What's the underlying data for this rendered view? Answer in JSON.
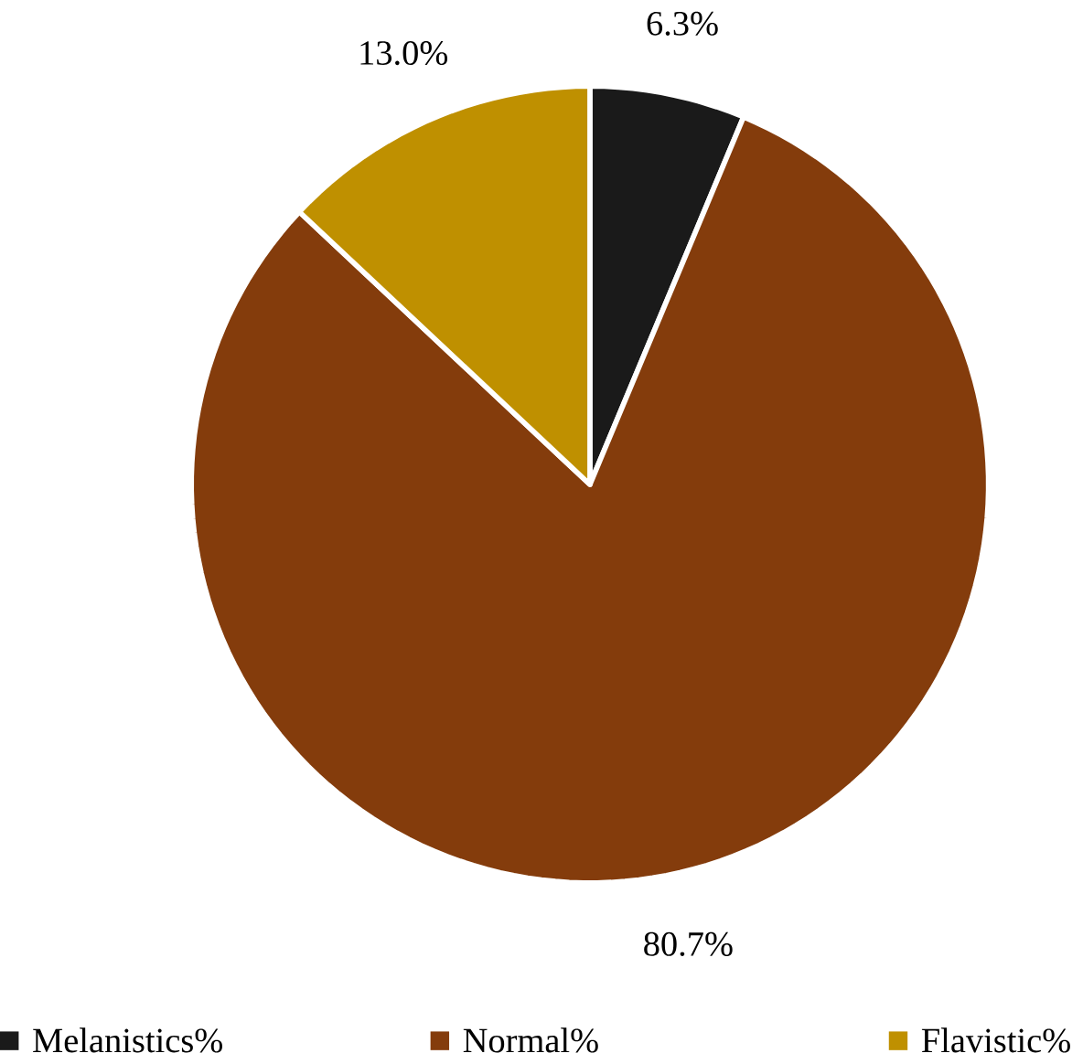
{
  "chart_data": {
    "type": "pie",
    "categories": [
      "Melanistics%",
      "Normal%",
      "Flavistic%"
    ],
    "values": [
      6.3,
      80.7,
      13.0
    ],
    "value_labels": [
      "6.3%",
      "80.7%",
      "13.0%"
    ],
    "colors": [
      "#1a1a1a",
      "#843c0c",
      "#bf9000"
    ],
    "legend": "bottom"
  }
}
